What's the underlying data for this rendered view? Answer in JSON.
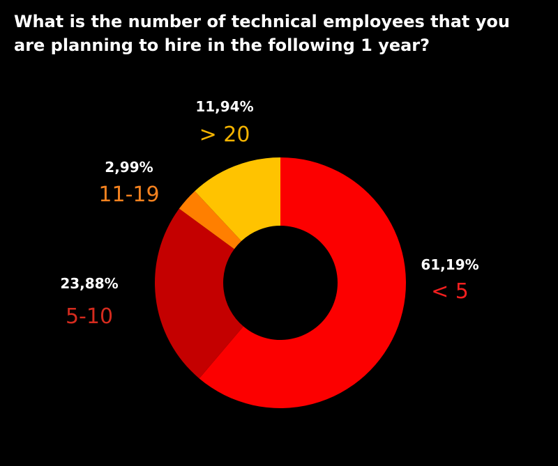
{
  "chart_data": {
    "type": "pie",
    "title": "What is the number of technical employees that you are planning to hire in the following 1 year?",
    "categories": [
      "< 5",
      "5-10",
      "11-19",
      "> 20"
    ],
    "values": [
      61.19,
      23.88,
      2.99,
      11.94
    ],
    "value_labels": [
      "61,19%",
      "23,88%",
      "2,99%",
      "11,94%"
    ],
    "colors": [
      "#fc0000",
      "#c40000",
      "#ff7f00",
      "#ffc300"
    ],
    "label_colors": [
      "#f21f1f",
      "#d52b1e",
      "#f5821f",
      "#f5b400"
    ],
    "donut": true,
    "legend": "none",
    "background": "#000000"
  }
}
